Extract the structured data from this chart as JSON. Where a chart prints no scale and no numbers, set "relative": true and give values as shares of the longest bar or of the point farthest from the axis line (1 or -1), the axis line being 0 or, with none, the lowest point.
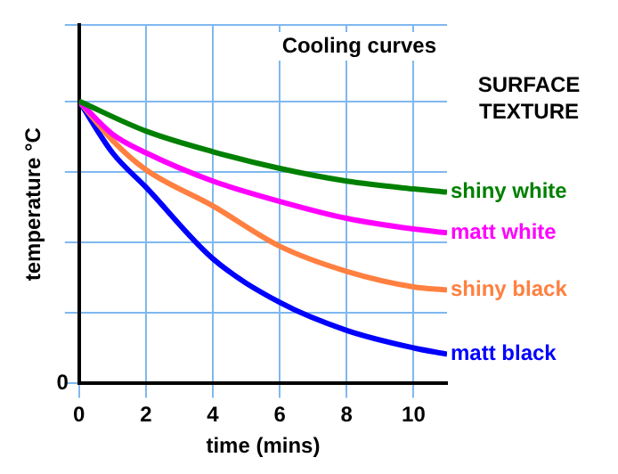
{
  "chart_data": {
    "type": "line",
    "title": "Cooling curves",
    "xlabel": "time (mins)",
    "ylabel": "temperature °C",
    "legend_title": "SURFACE TEXTURE",
    "relative": true,
    "xlim": [
      0,
      11
    ],
    "xticks": [
      0,
      2,
      4,
      6,
      8,
      10
    ],
    "grid": true,
    "legend": false,
    "marker": "none",
    "line_style": "solid",
    "annotations": [
      "0"
    ],
    "series": [
      {
        "name": "shiny white",
        "color": "#008000",
        "x": [
          0,
          2,
          4,
          6,
          8,
          10,
          11
        ],
        "values": [
          1,
          0.894,
          0.821,
          0.762,
          0.717,
          0.689,
          0.678
        ]
      },
      {
        "name": "matt white",
        "color": "#ff00ff",
        "x": [
          0,
          1,
          2,
          4,
          6,
          8,
          10,
          11
        ],
        "values": [
          1,
          0.883,
          0.817,
          0.717,
          0.645,
          0.585,
          0.547,
          0.534
        ]
      },
      {
        "name": "shiny black",
        "color": "#ff8040",
        "x": [
          0,
          1,
          2,
          4,
          6,
          8,
          10,
          11
        ],
        "values": [
          1,
          0.861,
          0.757,
          0.629,
          0.486,
          0.397,
          0.342,
          0.331
        ]
      },
      {
        "name": "matt black",
        "color": "#0000ff",
        "x": [
          0,
          1,
          2,
          4,
          6,
          8,
          10,
          11
        ],
        "values": [
          1,
          0.817,
          0.695,
          0.442,
          0.287,
          0.188,
          0.126,
          0.104
        ]
      }
    ]
  }
}
